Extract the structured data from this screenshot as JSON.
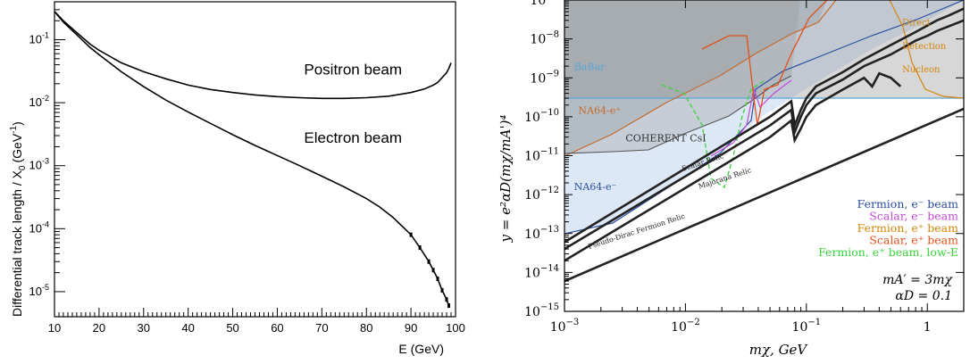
{
  "chart_data": [
    {
      "type": "line",
      "title": "",
      "xlabel": "E (GeV)",
      "ylabel": "Differential track length / X0 (GeV-1)",
      "ylabel_parts": {
        "main": "Differential track length / X",
        "sub": "0",
        "unit": "(GeV",
        "exp": "-1",
        "close": ")"
      },
      "xlim": [
        10,
        100
      ],
      "ylim": [
        4e-06,
        0.4
      ],
      "yscale": "log",
      "x_ticks": [
        "10",
        "20",
        "30",
        "40",
        "50",
        "60",
        "70",
        "80",
        "90",
        "100"
      ],
      "y_ticks": [
        {
          "base": "10",
          "exp": "-5",
          "value": 1e-05
        },
        {
          "base": "10",
          "exp": "-4",
          "value": 0.0001
        },
        {
          "base": "10",
          "exp": "-3",
          "value": 0.001
        },
        {
          "base": "10",
          "exp": "-2",
          "value": 0.01
        },
        {
          "base": "10",
          "exp": "-1",
          "value": 0.1
        }
      ],
      "grid": false,
      "annotations": [
        {
          "text": "Positron beam",
          "x": 66,
          "y": 0.028
        },
        {
          "text": "Electron beam",
          "x": 66,
          "y": 0.0023
        }
      ],
      "series": [
        {
          "name": "Positron beam",
          "x": [
            10,
            12,
            15,
            18,
            20,
            25,
            30,
            35,
            40,
            45,
            50,
            55,
            60,
            65,
            70,
            75,
            80,
            85,
            90,
            93,
            95,
            96,
            97,
            98,
            98.5,
            99
          ],
          "y": [
            0.28,
            0.2,
            0.13,
            0.085,
            0.068,
            0.043,
            0.031,
            0.024,
            0.019,
            0.0162,
            0.0145,
            0.0133,
            0.0125,
            0.012,
            0.0117,
            0.0117,
            0.012,
            0.0127,
            0.0145,
            0.0165,
            0.019,
            0.021,
            0.025,
            0.03,
            0.035,
            0.043
          ]
        },
        {
          "name": "Electron beam",
          "x": [
            10,
            12,
            15,
            18,
            20,
            25,
            30,
            35,
            40,
            45,
            50,
            55,
            60,
            65,
            70,
            75,
            80,
            83,
            86,
            88,
            90,
            92,
            94,
            95,
            96,
            97,
            98,
            98.5
          ],
          "y": [
            0.28,
            0.19,
            0.12,
            0.075,
            0.058,
            0.031,
            0.018,
            0.011,
            0.0071,
            0.0047,
            0.0031,
            0.0021,
            0.00145,
            0.001,
            0.00068,
            0.00046,
            0.0003,
            0.00022,
            0.00015,
            0.00011,
            8e-05,
            5e-05,
            3e-05,
            2.2e-05,
            1.6e-05,
            1.05e-05,
            7.5e-06,
            6e-06
          ]
        }
      ]
    },
    {
      "type": "line",
      "title": "",
      "xlabel": "mχ, GeV",
      "ylabel": "y = e²αD(mχ/mA')⁴",
      "xscale": "log",
      "yscale": "log",
      "xlim": [
        0.001,
        2
      ],
      "ylim": [
        1e-15,
        1e-07
      ],
      "x_ticks": [
        {
          "base": "10",
          "exp": "−3",
          "value": 0.001
        },
        {
          "base": "10",
          "exp": "−2",
          "value": 0.01
        },
        {
          "base": "10",
          "exp": "−1",
          "value": 0.1
        },
        {
          "base": "1",
          "exp": "",
          "value": 1
        }
      ],
      "y_ticks": [
        {
          "base": "10",
          "exp": "−15",
          "value": 1e-15
        },
        {
          "base": "10",
          "exp": "−14",
          "value": 1e-14
        },
        {
          "base": "10",
          "exp": "−13",
          "value": 1e-13
        },
        {
          "base": "10",
          "exp": "−12",
          "value": 1e-12
        },
        {
          "base": "10",
          "exp": "−11",
          "value": 1e-11
        },
        {
          "base": "10",
          "exp": "−10",
          "value": 1e-10
        },
        {
          "base": "10",
          "exp": "−9",
          "value": 1e-09
        },
        {
          "base": "10",
          "exp": "−8",
          "value": 1e-08
        },
        {
          "base": "10",
          "exp": "−7",
          "value": 1e-07
        }
      ],
      "region_labels": [
        {
          "text": "BaBar",
          "x": 0.0012,
          "y": 1.6e-09,
          "color": "#5aa7d6"
        },
        {
          "text": "NA64-e⁺",
          "x": 0.0013,
          "y": 1.2e-10,
          "color": "#c36a2d"
        },
        {
          "text": "COHERENT CsI",
          "x": 0.0032,
          "y": 2.3e-11,
          "color": "#333333"
        },
        {
          "text": "NA64-e⁻",
          "x": 0.0012,
          "y": 1.3e-12,
          "color": "#2a4fa0"
        },
        {
          "text": "Direct",
          "x": 0.62,
          "y": 2.2e-08,
          "color": "#d4860a"
        },
        {
          "text": "Detection",
          "x": 0.62,
          "y": 5.5e-09,
          "color": "#d4860a"
        },
        {
          "text": "Nucleon",
          "x": 0.62,
          "y": 1.4e-09,
          "color": "#d4860a"
        }
      ],
      "relic_labels": [
        {
          "text": "Scalar Relic",
          "x": 0.0095,
          "y": 4e-12
        },
        {
          "text": "Majorana Relic",
          "x": 0.013,
          "y": 1.4e-12
        },
        {
          "text": "Pseudo-Dirac Fermion Relic",
          "x": 0.0016,
          "y": 4e-14
        }
      ],
      "legend": {
        "position": "right",
        "entries": [
          {
            "text": "Fermion, e⁻ beam",
            "color": "#2a4fa0"
          },
          {
            "text": "Scalar, e⁻ beam",
            "color": "#c24bd6"
          },
          {
            "text": "Fermion, e⁺ beam",
            "color": "#d4860a"
          },
          {
            "text": "Scalar, e⁺ beam",
            "color": "#e0501a"
          },
          {
            "text": "Fermion, e⁺ beam, low-E",
            "color": "#3ad43a"
          }
        ]
      },
      "annotation": {
        "line1": "mA′ = 3mχ",
        "line2": "αD = 0.1"
      },
      "series": [
        {
          "x": [
            0.001,
            2
          ],
          "y": [
            6e-15,
            1.6e-10
          ],
          "color": "#222222"
        },
        {
          "x": [
            0.001,
            0.05,
            0.075,
            0.08,
            0.09,
            0.1,
            0.12,
            0.2,
            0.3,
            0.35,
            0.4,
            0.5,
            0.6
          ],
          "y": [
            2e-14,
            3e-11,
            8e-11,
            2.5e-11,
            5e-11,
            1e-10,
            2e-10,
            5e-10,
            1e-09,
            6e-10,
            1.3e-09,
            1e-09,
            6e-10
          ],
          "color": "#222222"
        },
        {
          "x": [
            0.001,
            0.05,
            0.075,
            0.08,
            0.09,
            0.1,
            0.12,
            0.2,
            0.3,
            0.5,
            0.8,
            1.0,
            1.2,
            2
          ],
          "y": [
            4e-14,
            6e-11,
            1.5e-10,
            4e-11,
            1e-10,
            2e-10,
            4e-10,
            9e-10,
            2e-09,
            4e-09,
            9e-09,
            1.2e-08,
            1.6e-08,
            3e-08
          ],
          "color": "#222222"
        },
        {
          "x": [
            0.001,
            0.05,
            0.075,
            0.08,
            0.09,
            0.1,
            0.12,
            0.2,
            0.3,
            0.5,
            0.8,
            1.2,
            1.5,
            2
          ],
          "y": [
            6e-14,
            1e-10,
            2.5e-10,
            6e-11,
            1.5e-10,
            3e-10,
            6e-10,
            1.4e-09,
            3e-09,
            7e-09,
            1.5e-08,
            3e-08,
            4e-08,
            6e-08
          ],
          "color": "#222222"
        }
      ]
    }
  ]
}
